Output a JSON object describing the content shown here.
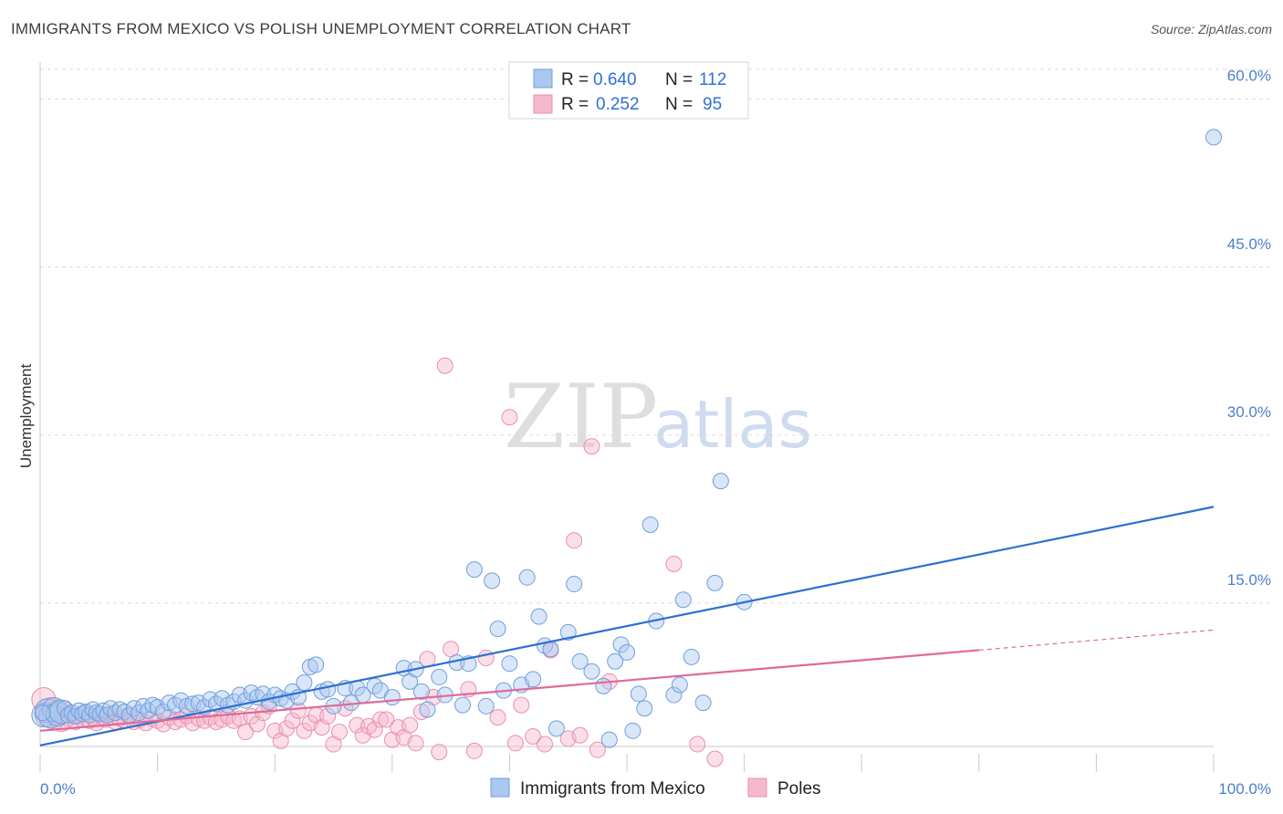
{
  "header": {
    "title": "IMMIGRANTS FROM MEXICO VS POLISH UNEMPLOYMENT CORRELATION CHART",
    "source": "Source: ZipAtlas.com"
  },
  "watermark": {
    "zip": "ZIP",
    "atlas": "atlas"
  },
  "legend": {
    "r_label": "R =",
    "n_label": "N =",
    "series": [
      {
        "r": "0.640",
        "n": "112"
      },
      {
        "r": "0.252",
        "n": "95"
      }
    ]
  },
  "colors": {
    "blue_fill": "#aac8f0",
    "blue_stroke": "#6e9fdc",
    "blue_line": "#2d6fd2",
    "pink_fill": "#f6b9cc",
    "pink_stroke": "#ea8fab",
    "pink_line": "#e0699a",
    "grid": "#dcdcdc",
    "axis_text": "#4a7fd0"
  },
  "chart_data": {
    "type": "scatter",
    "title": "IMMIGRANTS FROM MEXICO VS POLISH UNEMPLOYMENT CORRELATION CHART",
    "xlabel": "",
    "ylabel": "Unemployment",
    "xlim": [
      0,
      100
    ],
    "ylim": [
      0,
      62.5
    ],
    "x_tick_labels": [
      "0.0%",
      "100.0%"
    ],
    "y_ticks": [
      15,
      30,
      45,
      60
    ],
    "y_tick_labels": [
      "15.0%",
      "30.0%",
      "45.0%",
      "60.0%"
    ],
    "grid": true,
    "legend_position": "bottom-center",
    "series": [
      {
        "name": "Immigrants from Mexico",
        "color": "#aac8f0",
        "r": 0.64,
        "n": 112,
        "trend": {
          "x": [
            0,
            100
          ],
          "y": [
            2.3,
            23.6
          ]
        },
        "points": [
          [
            0.3,
            5.0
          ],
          [
            0.6,
            5.4
          ],
          [
            0.9,
            4.9
          ],
          [
            1.2,
            5.5
          ],
          [
            1.5,
            5.1
          ],
          [
            1.8,
            5.3
          ],
          [
            2.1,
            5.6
          ],
          [
            2.4,
            5.0
          ],
          [
            2.7,
            5.2
          ],
          [
            3.0,
            4.9
          ],
          [
            3.3,
            5.4
          ],
          [
            3.6,
            5.1
          ],
          [
            3.9,
            5.3
          ],
          [
            4.2,
            5.0
          ],
          [
            4.5,
            5.5
          ],
          [
            4.8,
            5.2
          ],
          [
            5.1,
            5.1
          ],
          [
            5.4,
            5.4
          ],
          [
            5.7,
            5.0
          ],
          [
            6.0,
            5.6
          ],
          [
            6.4,
            5.2
          ],
          [
            6.8,
            5.5
          ],
          [
            7.2,
            5.3
          ],
          [
            7.6,
            5.0
          ],
          [
            8.0,
            5.6
          ],
          [
            8.4,
            5.2
          ],
          [
            8.8,
            5.8
          ],
          [
            9.2,
            5.4
          ],
          [
            9.6,
            5.9
          ],
          [
            10.0,
            5.7
          ],
          [
            10.5,
            5.3
          ],
          [
            11.0,
            6.1
          ],
          [
            11.5,
            5.9
          ],
          [
            12.0,
            6.3
          ],
          [
            12.5,
            5.8
          ],
          [
            13.0,
            6.0
          ],
          [
            13.5,
            6.1
          ],
          [
            14.0,
            5.7
          ],
          [
            14.5,
            6.4
          ],
          [
            15.0,
            6.0
          ],
          [
            15.5,
            6.5
          ],
          [
            16.0,
            5.9
          ],
          [
            16.5,
            6.2
          ],
          [
            17.0,
            6.8
          ],
          [
            17.5,
            6.3
          ],
          [
            18.0,
            7.0
          ],
          [
            18.5,
            6.6
          ],
          [
            19.0,
            6.9
          ],
          [
            19.5,
            6.2
          ],
          [
            20.0,
            6.8
          ],
          [
            20.5,
            6.5
          ],
          [
            21.0,
            6.3
          ],
          [
            21.5,
            7.1
          ],
          [
            22.0,
            6.6
          ],
          [
            22.5,
            7.9
          ],
          [
            23.0,
            9.3
          ],
          [
            23.5,
            9.5
          ],
          [
            24.0,
            7.1
          ],
          [
            24.5,
            7.3
          ],
          [
            25.0,
            5.8
          ],
          [
            26.0,
            7.4
          ],
          [
            26.5,
            6.1
          ],
          [
            27.0,
            7.4
          ],
          [
            27.5,
            6.8
          ],
          [
            28.5,
            7.6
          ],
          [
            29.0,
            7.2
          ],
          [
            30.0,
            6.6
          ],
          [
            31.0,
            9.2
          ],
          [
            31.5,
            8.0
          ],
          [
            32.0,
            9.1
          ],
          [
            32.5,
            7.1
          ],
          [
            33.0,
            5.5
          ],
          [
            34.0,
            8.4
          ],
          [
            34.5,
            6.8
          ],
          [
            35.5,
            9.7
          ],
          [
            36.0,
            5.9
          ],
          [
            36.5,
            9.6
          ],
          [
            37.0,
            18.0
          ],
          [
            38.0,
            5.8
          ],
          [
            38.5,
            17.0
          ],
          [
            39.0,
            12.7
          ],
          [
            39.5,
            7.2
          ],
          [
            40.0,
            9.6
          ],
          [
            41.0,
            7.7
          ],
          [
            41.5,
            17.3
          ],
          [
            42.0,
            8.2
          ],
          [
            42.5,
            13.8
          ],
          [
            43.0,
            11.2
          ],
          [
            43.5,
            10.9
          ],
          [
            44.0,
            3.8
          ],
          [
            45.0,
            12.4
          ],
          [
            45.5,
            16.7
          ],
          [
            46.0,
            9.8
          ],
          [
            47.0,
            8.9
          ],
          [
            48.0,
            7.6
          ],
          [
            48.5,
            2.8
          ],
          [
            49.0,
            9.8
          ],
          [
            49.5,
            11.3
          ],
          [
            50.0,
            10.6
          ],
          [
            50.5,
            3.6
          ],
          [
            51.0,
            6.9
          ],
          [
            51.5,
            5.6
          ],
          [
            52.0,
            22.0
          ],
          [
            52.5,
            13.4
          ],
          [
            54.0,
            6.8
          ],
          [
            54.5,
            7.7
          ],
          [
            54.8,
            15.3
          ],
          [
            55.5,
            10.2
          ],
          [
            56.5,
            6.1
          ],
          [
            57.5,
            16.8
          ],
          [
            58.0,
            25.9
          ],
          [
            60.0,
            15.1
          ],
          [
            100.0,
            56.6
          ],
          [
            0.2,
            5.2
          ]
        ]
      },
      {
        "name": "Poles",
        "color": "#f6b9cc",
        "r": 0.252,
        "n": 95,
        "trend": {
          "x": [
            0,
            80
          ],
          "y": [
            3.6,
            10.8
          ]
        },
        "trend_extension": {
          "x": [
            80,
            100
          ],
          "y": [
            10.8,
            12.6
          ]
        },
        "points": [
          [
            0.3,
            6.4
          ],
          [
            0.6,
            5.0
          ],
          [
            0.9,
            5.5
          ],
          [
            1.2,
            4.8
          ],
          [
            1.5,
            5.3
          ],
          [
            1.8,
            4.6
          ],
          [
            2.1,
            5.1
          ],
          [
            2.4,
            4.7
          ],
          [
            2.7,
            5.0
          ],
          [
            3.0,
            4.4
          ],
          [
            3.3,
            4.9
          ],
          [
            3.6,
            4.6
          ],
          [
            3.9,
            5.2
          ],
          [
            4.2,
            4.5
          ],
          [
            4.5,
            4.8
          ],
          [
            4.8,
            4.3
          ],
          [
            5.2,
            4.9
          ],
          [
            5.6,
            4.6
          ],
          [
            6.0,
            5.1
          ],
          [
            6.4,
            4.4
          ],
          [
            6.8,
            4.7
          ],
          [
            7.2,
            4.5
          ],
          [
            7.6,
            4.9
          ],
          [
            8.0,
            4.4
          ],
          [
            8.5,
            4.6
          ],
          [
            9.0,
            4.3
          ],
          [
            9.5,
            4.7
          ],
          [
            10.0,
            4.5
          ],
          [
            10.5,
            4.2
          ],
          [
            11.0,
            4.8
          ],
          [
            11.5,
            4.4
          ],
          [
            12.0,
            4.6
          ],
          [
            12.5,
            4.9
          ],
          [
            13.0,
            4.3
          ],
          [
            13.5,
            4.7
          ],
          [
            14.0,
            4.5
          ],
          [
            14.5,
            4.8
          ],
          [
            15.0,
            4.4
          ],
          [
            15.5,
            4.6
          ],
          [
            16.0,
            4.9
          ],
          [
            16.5,
            4.5
          ],
          [
            17.0,
            4.7
          ],
          [
            17.5,
            3.5
          ],
          [
            18.0,
            4.9
          ],
          [
            18.5,
            4.2
          ],
          [
            19.0,
            5.2
          ],
          [
            19.5,
            5.8
          ],
          [
            20.0,
            3.6
          ],
          [
            20.5,
            2.7
          ],
          [
            21.0,
            3.8
          ],
          [
            21.5,
            4.5
          ],
          [
            22.0,
            5.4
          ],
          [
            22.5,
            3.6
          ],
          [
            23.0,
            4.3
          ],
          [
            23.5,
            5.0
          ],
          [
            24.0,
            3.9
          ],
          [
            24.5,
            4.9
          ],
          [
            25.0,
            2.4
          ],
          [
            25.5,
            3.5
          ],
          [
            26.0,
            5.6
          ],
          [
            27.0,
            4.1
          ],
          [
            27.5,
            3.2
          ],
          [
            28.0,
            4.0
          ],
          [
            28.5,
            3.7
          ],
          [
            29.0,
            4.6
          ],
          [
            29.5,
            4.6
          ],
          [
            30.0,
            2.8
          ],
          [
            30.5,
            3.9
          ],
          [
            31.0,
            3.0
          ],
          [
            31.5,
            4.1
          ],
          [
            32.0,
            2.5
          ],
          [
            32.5,
            5.3
          ],
          [
            33.0,
            10.0
          ],
          [
            33.5,
            6.6
          ],
          [
            34.0,
            1.7
          ],
          [
            34.5,
            36.2
          ],
          [
            35.0,
            10.9
          ],
          [
            36.5,
            7.3
          ],
          [
            37.0,
            1.8
          ],
          [
            38.0,
            10.1
          ],
          [
            39.0,
            4.8
          ],
          [
            40.0,
            31.6
          ],
          [
            40.5,
            2.5
          ],
          [
            41.0,
            5.9
          ],
          [
            42.0,
            3.1
          ],
          [
            43.0,
            2.4
          ],
          [
            43.5,
            10.8
          ],
          [
            45.0,
            2.9
          ],
          [
            45.5,
            20.6
          ],
          [
            46.0,
            3.2
          ],
          [
            47.0,
            29.0
          ],
          [
            47.5,
            1.9
          ],
          [
            48.5,
            8.0
          ],
          [
            54.0,
            18.5
          ],
          [
            56.0,
            2.4
          ],
          [
            57.5,
            1.1
          ]
        ]
      }
    ]
  },
  "bottom_legend": {
    "items": [
      "Immigrants from Mexico",
      "Poles"
    ]
  }
}
